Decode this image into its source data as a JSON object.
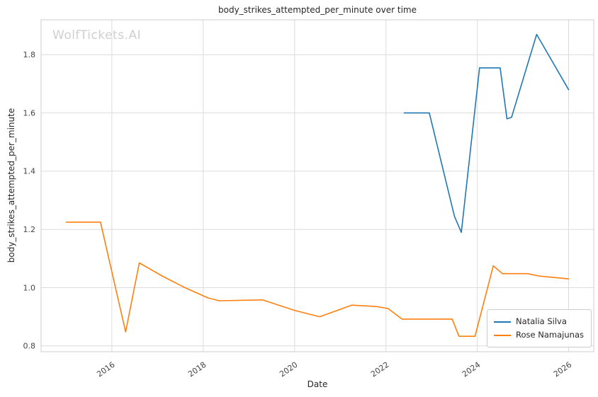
{
  "chart_data": {
    "type": "line",
    "title": "body_strikes_attempted_per_minute over time",
    "xlabel": "Date",
    "ylabel": "body_strikes_attempted_per_minute",
    "watermark": "WolfTickets.AI",
    "xlim": [
      2014.45,
      2026.55
    ],
    "ylim": [
      0.78,
      1.92
    ],
    "xticks": [
      2016,
      2018,
      2020,
      2022,
      2024,
      2026
    ],
    "yticks": [
      0.8,
      1.0,
      1.2,
      1.4,
      1.6,
      1.8
    ],
    "grid": true,
    "legend_position": "lower right",
    "series": [
      {
        "name": "Natalia Silva",
        "color": "#1f77b4",
        "points": [
          [
            2022.4,
            1.6
          ],
          [
            2022.95,
            1.6
          ],
          [
            2023.5,
            1.245
          ],
          [
            2023.65,
            1.19
          ],
          [
            2024.05,
            1.755
          ],
          [
            2024.5,
            1.755
          ],
          [
            2024.65,
            1.58
          ],
          [
            2024.75,
            1.585
          ],
          [
            2025.3,
            1.87
          ],
          [
            2026.0,
            1.68
          ]
        ]
      },
      {
        "name": "Rose Namajunas",
        "color": "#ff7f0e",
        "points": [
          [
            2015.0,
            1.225
          ],
          [
            2015.75,
            1.225
          ],
          [
            2016.3,
            0.848
          ],
          [
            2016.6,
            1.085
          ],
          [
            2017.1,
            1.04
          ],
          [
            2017.6,
            1.0
          ],
          [
            2018.1,
            0.965
          ],
          [
            2018.35,
            0.955
          ],
          [
            2019.3,
            0.958
          ],
          [
            2020.0,
            0.922
          ],
          [
            2020.55,
            0.9
          ],
          [
            2021.25,
            0.94
          ],
          [
            2021.8,
            0.935
          ],
          [
            2022.05,
            0.928
          ],
          [
            2022.35,
            0.892
          ],
          [
            2023.45,
            0.892
          ],
          [
            2023.6,
            0.833
          ],
          [
            2023.95,
            0.833
          ],
          [
            2024.35,
            1.075
          ],
          [
            2024.55,
            1.048
          ],
          [
            2025.1,
            1.048
          ],
          [
            2025.35,
            1.04
          ],
          [
            2026.0,
            1.03
          ]
        ]
      }
    ]
  }
}
